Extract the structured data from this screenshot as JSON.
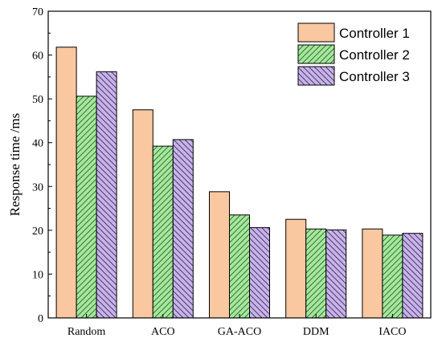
{
  "chart_data": {
    "type": "bar",
    "title": "",
    "xlabel": "",
    "ylabel": "Response time /ms",
    "ylim": [
      0,
      70
    ],
    "yticks": [
      0,
      10,
      20,
      30,
      40,
      50,
      60,
      70
    ],
    "grid": false,
    "legend_position": "top-right",
    "categories": [
      "Random",
      "ACO",
      "GA-ACO",
      "DDM",
      "IACO"
    ],
    "series": [
      {
        "name": "Controller 1",
        "values": [
          61.8,
          47.5,
          28.8,
          22.5,
          20.3
        ],
        "color": "#fac8a0",
        "pattern": "none"
      },
      {
        "name": "Controller 2",
        "values": [
          50.6,
          39.2,
          23.5,
          20.3,
          18.9
        ],
        "color": "#a8e6a0",
        "pattern": "hatch-forward"
      },
      {
        "name": "Controller 3",
        "values": [
          56.2,
          40.7,
          20.6,
          20.1,
          19.3
        ],
        "color": "#c8b4e6",
        "pattern": "hatch-back"
      }
    ]
  }
}
